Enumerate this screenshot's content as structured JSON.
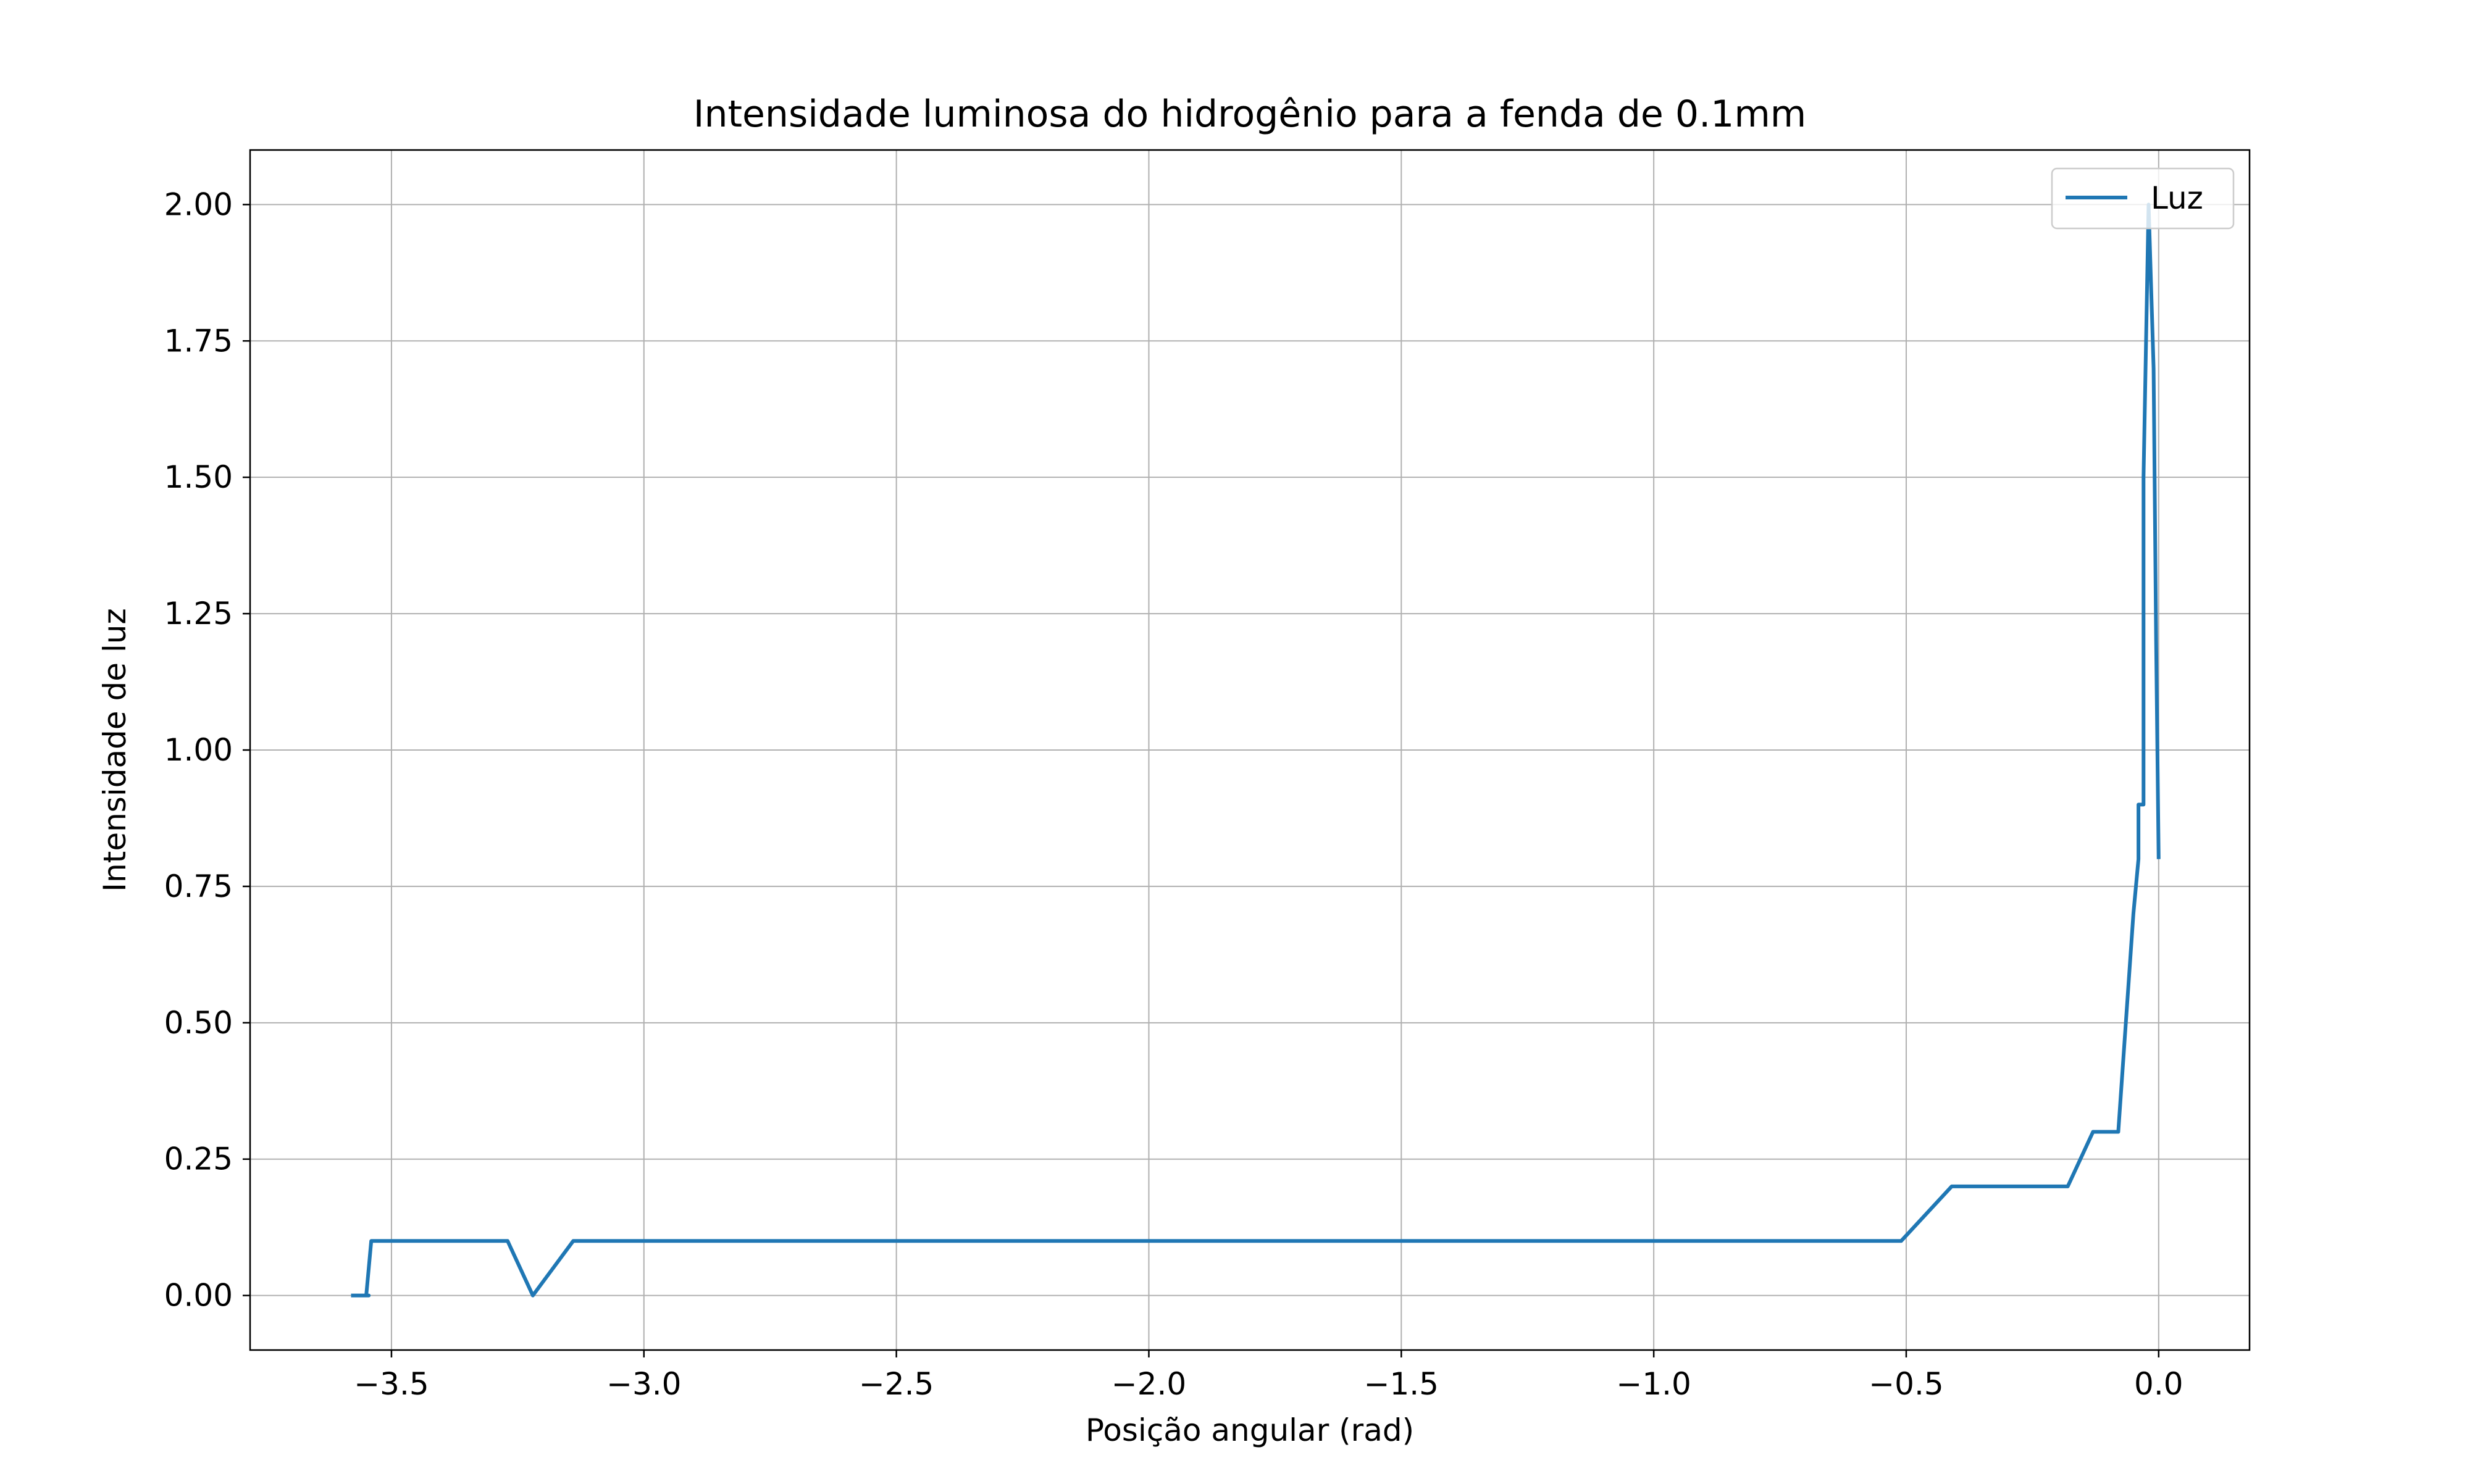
{
  "chart_data": {
    "type": "line",
    "title": "Intensidade luminosa do hidrogênio para a fenda de 0.1mm",
    "xlabel": "Posição angular (rad)",
    "ylabel": "Intensidade de luz",
    "xlim": [
      -3.78,
      0.18
    ],
    "ylim": [
      -0.1,
      2.1
    ],
    "x_ticks": [
      -3.5,
      -3.0,
      -2.5,
      -2.0,
      -1.5,
      -1.0,
      -0.5,
      0.0
    ],
    "x_tick_labels": [
      "−3.5",
      "−3.0",
      "−2.5",
      "−2.0",
      "−1.5",
      "−1.0",
      "−0.5",
      "0.0"
    ],
    "y_ticks": [
      0.0,
      0.25,
      0.5,
      0.75,
      1.0,
      1.25,
      1.5,
      1.75,
      2.0
    ],
    "y_tick_labels": [
      "0.00",
      "0.25",
      "0.50",
      "0.75",
      "1.00",
      "1.25",
      "1.50",
      "1.75",
      "2.00"
    ],
    "grid": true,
    "legend_position": "top-right",
    "series": [
      {
        "name": "Luz",
        "color": "#1f77b4",
        "x": [
          -3.58,
          -3.565,
          -3.56,
          -3.545,
          -3.55,
          -3.54,
          -3.27,
          -3.22,
          -3.14,
          -0.51,
          -0.41,
          -0.18,
          -0.13,
          -0.08,
          -0.05,
          -0.04,
          -0.04,
          -0.03,
          -0.03,
          -0.02,
          -0.01,
          -0.005,
          0.0
        ],
        "y": [
          0.0,
          0.0,
          0.0,
          0.0,
          0.0,
          0.1,
          0.1,
          0.0,
          0.1,
          0.1,
          0.2,
          0.2,
          0.3,
          0.3,
          0.7,
          0.8,
          0.9,
          0.9,
          1.5,
          2.0,
          1.7,
          1.2,
          0.8
        ]
      }
    ]
  }
}
